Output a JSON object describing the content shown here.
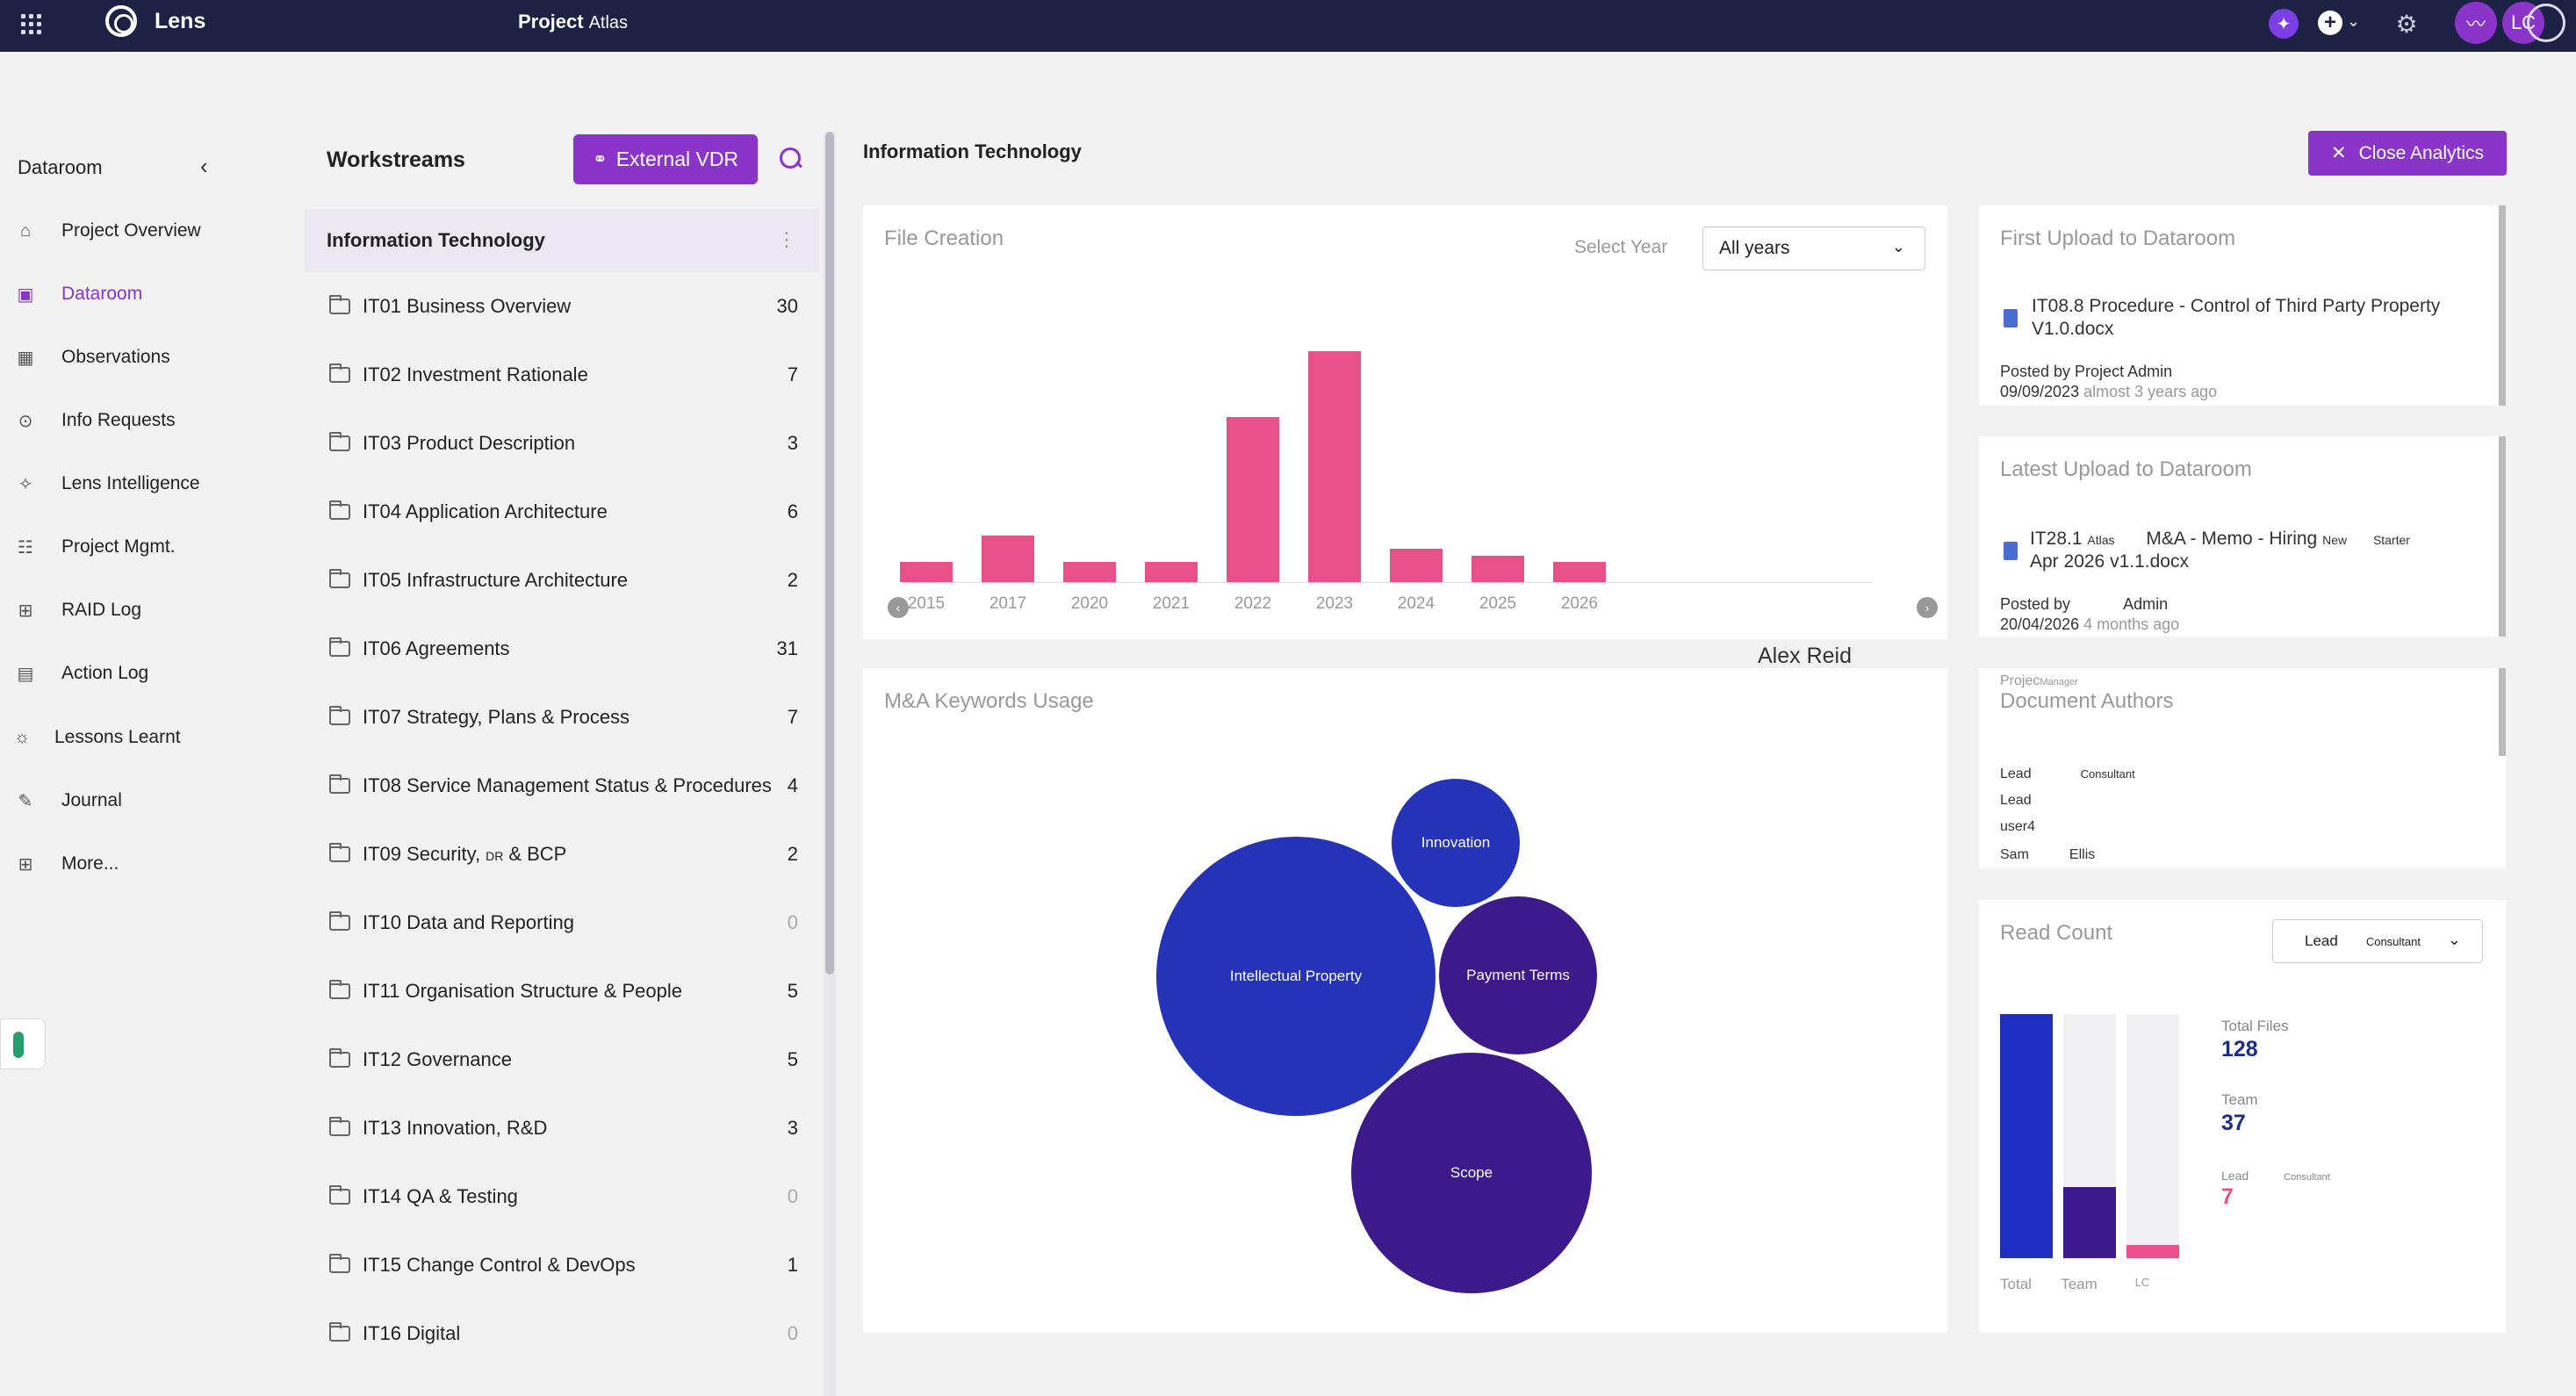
{
  "topbar": {
    "brand": "Lens",
    "project_label": "Project",
    "project_name": "Atlas",
    "avatar_initials": "LC"
  },
  "nav": {
    "title": "Dataroom",
    "items": [
      {
        "label": "Project Overview",
        "icon": "home-icon"
      },
      {
        "label": "Dataroom",
        "icon": "dataroom-icon",
        "active": true
      },
      {
        "label": "Observations",
        "icon": "observations-icon"
      },
      {
        "label": "Info Requests",
        "icon": "info-requests-icon"
      },
      {
        "label": "Lens Intelligence",
        "icon": "sparkle-icon"
      },
      {
        "label": "Project Mgmt.",
        "icon": "project-mgmt-icon"
      },
      {
        "label": "RAID Log",
        "icon": "raid-log-icon"
      },
      {
        "label": "Action Log",
        "icon": "action-log-icon"
      },
      {
        "label": "Lessons Learnt",
        "icon": "lightbulb-icon"
      },
      {
        "label": "Journal",
        "icon": "journal-icon"
      },
      {
        "label": "More...",
        "icon": "more-icon"
      }
    ]
  },
  "workstreams": {
    "title": "Workstreams",
    "vdr_label": "External VDR",
    "header": "Information Technology",
    "rows": [
      {
        "label": "IT01 Business Overview",
        "count": "30"
      },
      {
        "label": "IT02 Investment Rationale",
        "count": "7"
      },
      {
        "label": "IT03 Product Description",
        "count": "3"
      },
      {
        "label": "IT04 Application Architecture",
        "count": "6"
      },
      {
        "label": "IT05 Infrastructure Architecture",
        "count": "2"
      },
      {
        "label": "IT06 Agreements",
        "count": "31"
      },
      {
        "label": "IT07 Strategy, Plans & Process",
        "count": "7"
      },
      {
        "label": "IT08 Service Management Status & Procedures",
        "count": "4"
      },
      {
        "label": "IT09 Security,",
        "small": "DR",
        "suffix": "& BCP",
        "count": "2"
      },
      {
        "label": "IT10 Data and Reporting",
        "count": "0"
      },
      {
        "label": "IT11 Organisation Structure & People",
        "count": "5"
      },
      {
        "label": "IT12 Governance",
        "count": "5"
      },
      {
        "label": "IT13 Innovation, R&D",
        "count": "3"
      },
      {
        "label": "IT14 QA & Testing",
        "count": "0"
      },
      {
        "label": "IT15 Change Control & DevOps",
        "count": "1"
      },
      {
        "label": "IT16 Digital",
        "count": "0"
      }
    ]
  },
  "main": {
    "title": "Information Technology",
    "close_label": "Close Analytics",
    "floating_name": "Alex Reid"
  },
  "file_creation": {
    "title": "File Creation",
    "select_label": "Select Year",
    "select_value": "All years"
  },
  "chart_data": {
    "type": "bar",
    "categories": [
      "2015",
      "2017",
      "2020",
      "2021",
      "2022",
      "2023",
      "2024",
      "2025",
      "2026"
    ],
    "values": [
      3,
      7,
      3,
      3,
      25,
      35,
      5,
      4,
      3
    ],
    "ylim": [
      0,
      40
    ],
    "color": "#e8508a"
  },
  "keywords": {
    "title": "M&A Keywords Usage",
    "bubbles": [
      {
        "label": "Innovation",
        "color": "#2433b8"
      },
      {
        "label": "Intellectual Property",
        "color": "#2433b8"
      },
      {
        "label": "Payment Terms",
        "color": "#3d1a8c"
      },
      {
        "label": "Scope",
        "color": "#3d1a8c"
      }
    ]
  },
  "first_upload": {
    "title": "First Upload to Dataroom",
    "file": "IT08.8 Procedure - Control of Third Party Property V1.0.docx",
    "posted_by": "Posted by Project Admin",
    "date": "09/09/2023",
    "ago": "almost 3 years ago"
  },
  "latest_upload": {
    "title": "Latest Upload to Dataroom",
    "file_a": "IT28.1",
    "file_small": "Atlas",
    "file_b": "M&A - Memo - Hiring",
    "file_small2": "New",
    "file_small3": "Starter",
    "file_c": "Apr 2026 v1.1.docx",
    "posted_by": "Posted by",
    "posted_name": "Admin",
    "date": "20/04/2026",
    "ago": "4 months ago"
  },
  "authors": {
    "title": "Document Authors",
    "overlay_a": "Projec",
    "overlay_b": "Manager",
    "rows": [
      {
        "name": "Lead",
        "role": "Consultant"
      },
      {
        "name": "Lead",
        "role": ""
      },
      {
        "name": "user4",
        "role": ""
      },
      {
        "name": "Sam",
        "role": "Ellis"
      }
    ]
  },
  "read_count": {
    "title": "Read Count",
    "select_main": "Lead",
    "select_small": "Consultant",
    "bars": [
      {
        "label": "Total",
        "fraction": 1.0,
        "color": "#1f2ec0"
      },
      {
        "label": "Team",
        "fraction": 0.29,
        "color": "#3d1a8c"
      },
      {
        "label": "LC",
        "fraction": 0.055,
        "color": "#e8508a"
      }
    ],
    "stats": [
      {
        "label": "Total Files",
        "value": "128"
      },
      {
        "label": "Team",
        "value": "37"
      },
      {
        "label": "Lead",
        "label_small": "Consultant",
        "value": "7"
      }
    ]
  }
}
